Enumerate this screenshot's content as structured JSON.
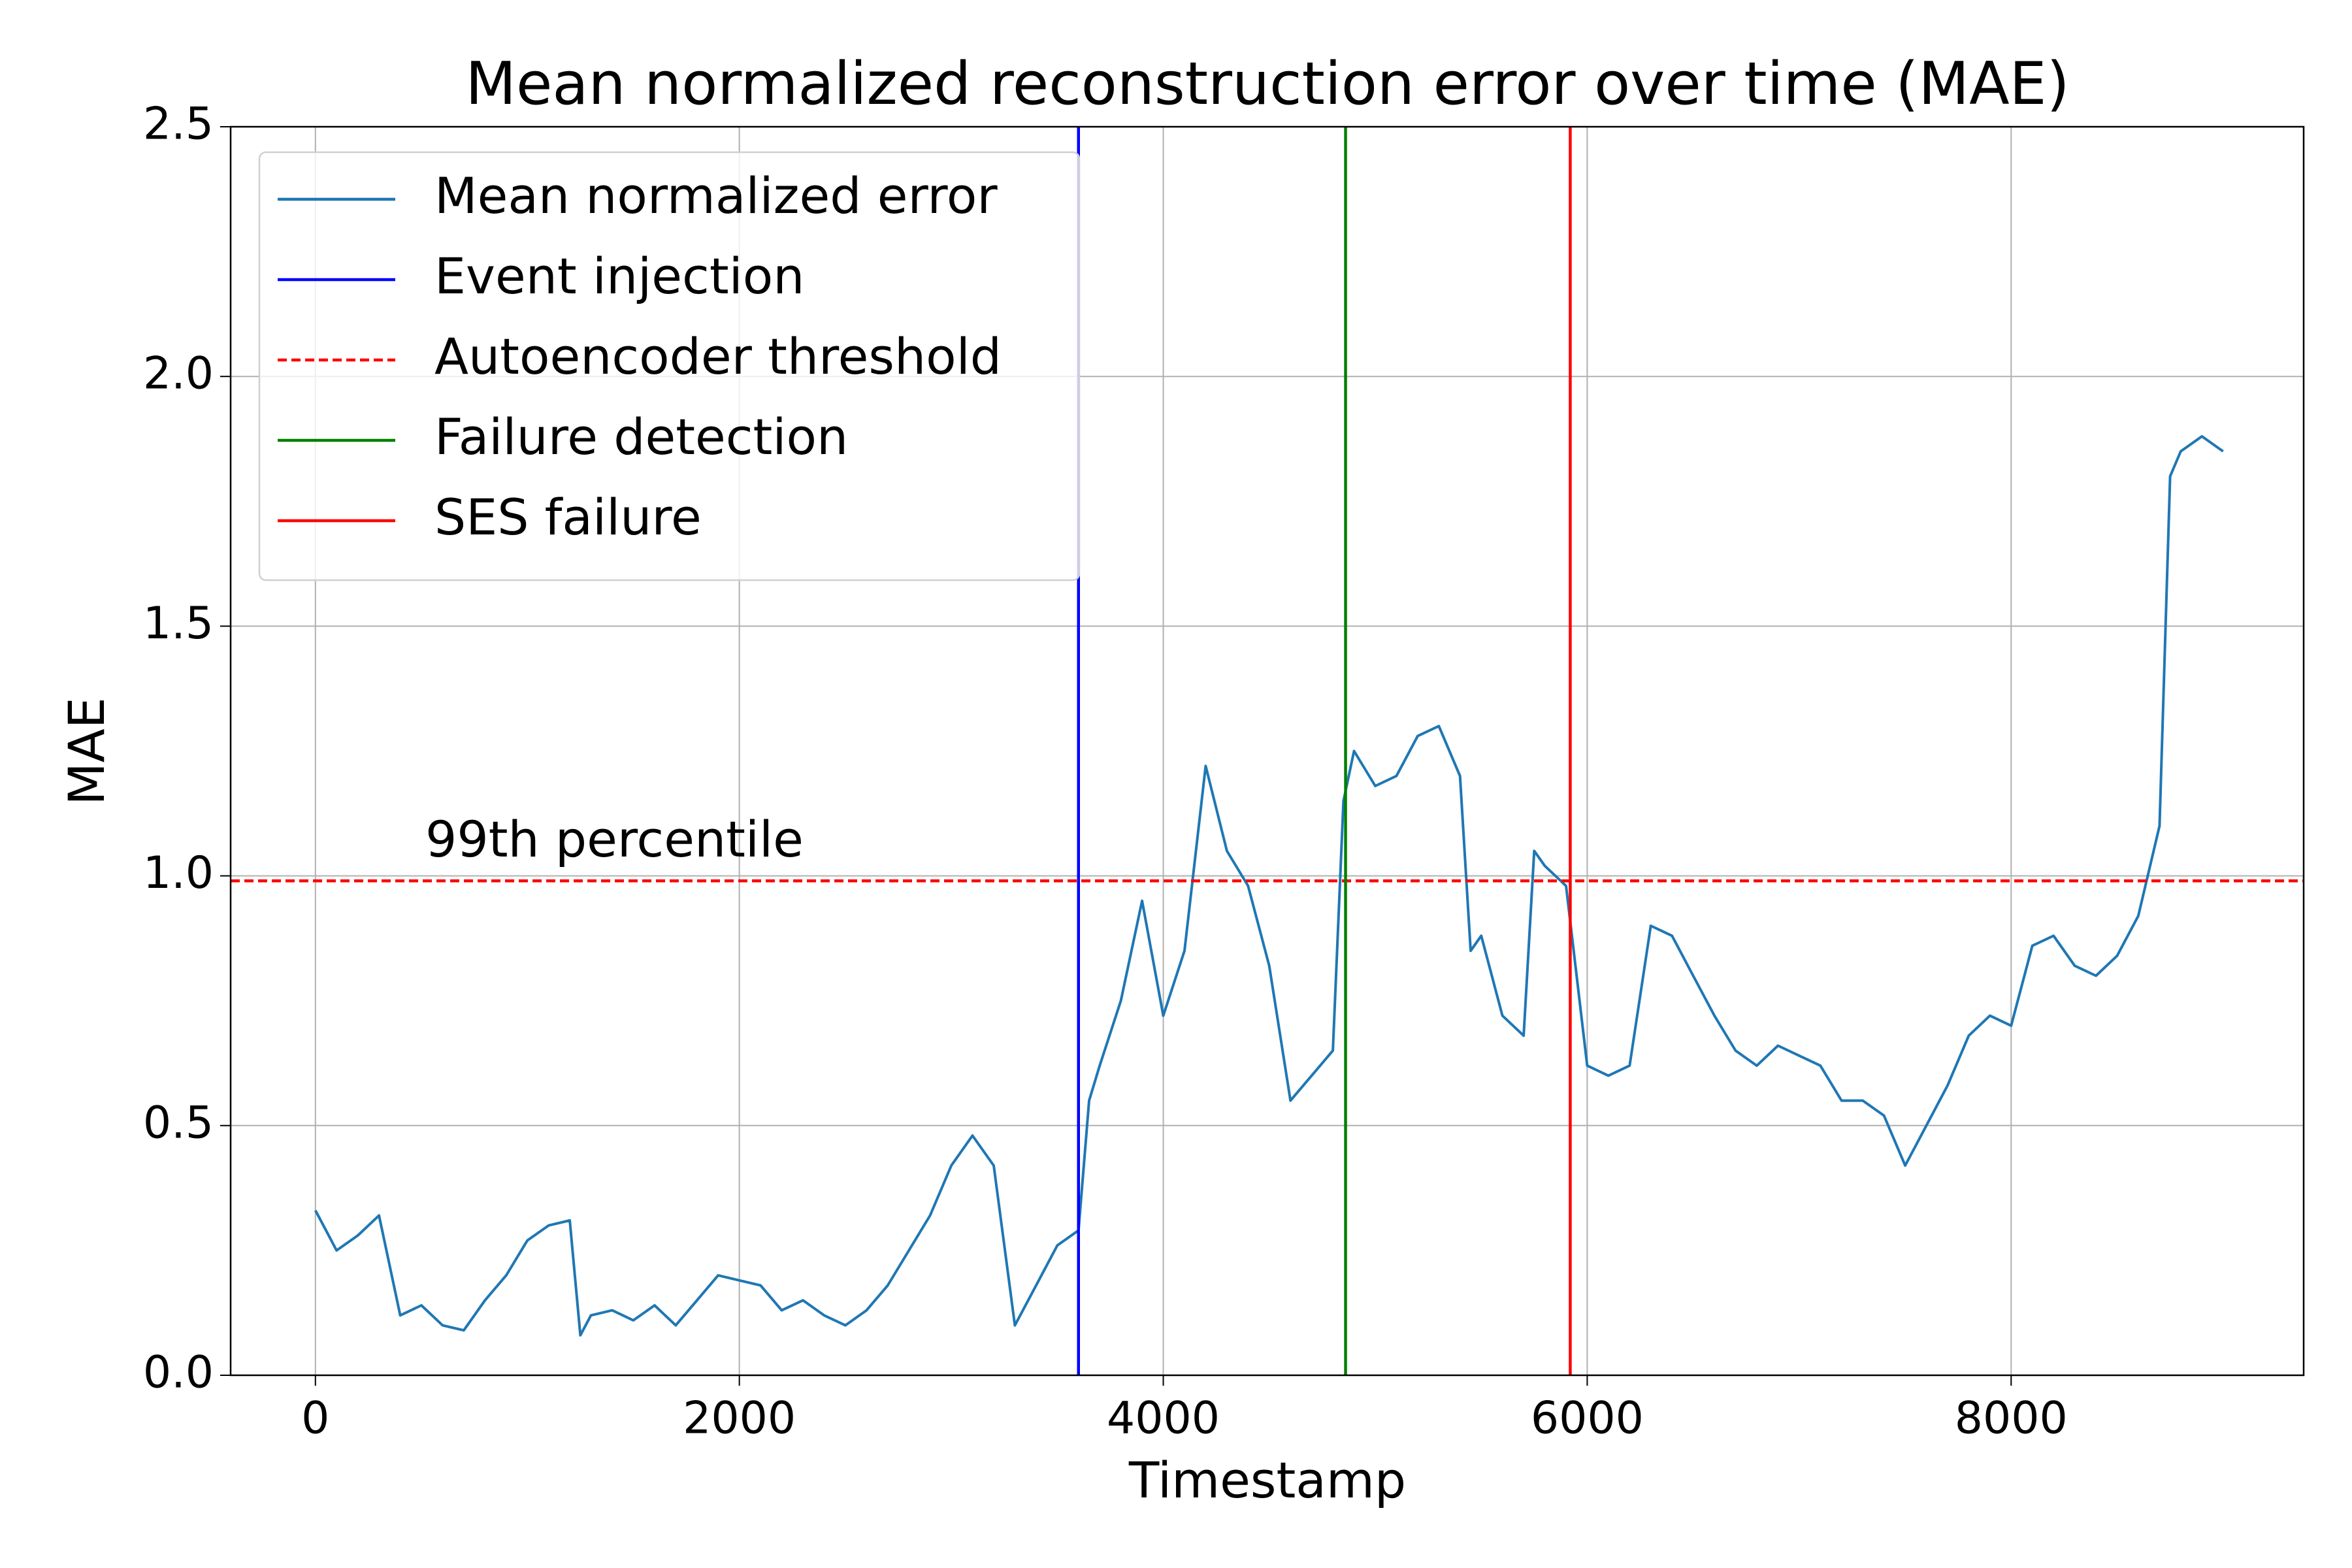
{
  "chart_data": {
    "type": "line",
    "title": "Mean normalized reconstruction error over time (MAE)",
    "x_label": "Timestamp",
    "y_label": "MAE",
    "x": [
      0,
      100,
      200,
      300,
      400,
      500,
      600,
      700,
      800,
      900,
      1000,
      1100,
      1200,
      1250,
      1300,
      1400,
      1500,
      1600,
      1700,
      1800,
      1900,
      2000,
      2100,
      2200,
      2300,
      2400,
      2500,
      2600,
      2700,
      2800,
      2900,
      3000,
      3100,
      3200,
      3300,
      3400,
      3500,
      3600,
      3650,
      3700,
      3800,
      3900,
      4000,
      4100,
      4200,
      4300,
      4400,
      4500,
      4600,
      4700,
      4800,
      4850,
      4900,
      5000,
      5100,
      5200,
      5300,
      5400,
      5450,
      5500,
      5600,
      5700,
      5750,
      5800,
      5900,
      6000,
      6100,
      6200,
      6300,
      6400,
      6500,
      6600,
      6700,
      6800,
      6900,
      7000,
      7100,
      7200,
      7300,
      7400,
      7500,
      7600,
      7700,
      7800,
      7900,
      8000,
      8100,
      8200,
      8300,
      8400,
      8500,
      8600,
      8700,
      8750,
      8800,
      8900,
      9000
    ],
    "series": [
      {
        "name": "Mean normalized error",
        "color": "#1f77b4",
        "values": [
          0.33,
          0.25,
          0.28,
          0.32,
          0.12,
          0.14,
          0.1,
          0.09,
          0.15,
          0.2,
          0.27,
          0.3,
          0.31,
          0.08,
          0.12,
          0.13,
          0.11,
          0.14,
          0.1,
          0.15,
          0.2,
          0.19,
          0.18,
          0.13,
          0.15,
          0.12,
          0.1,
          0.13,
          0.18,
          0.25,
          0.32,
          0.42,
          0.48,
          0.42,
          0.1,
          0.18,
          0.26,
          0.29,
          0.55,
          0.62,
          0.75,
          0.95,
          0.72,
          0.85,
          1.22,
          1.05,
          0.98,
          0.82,
          0.55,
          0.6,
          0.65,
          1.15,
          1.25,
          1.18,
          1.2,
          1.28,
          1.3,
          1.2,
          0.85,
          0.88,
          0.72,
          0.68,
          1.05,
          1.02,
          0.98,
          0.62,
          0.6,
          0.62,
          0.9,
          0.88,
          0.8,
          0.72,
          0.65,
          0.62,
          0.66,
          0.64,
          0.62,
          0.55,
          0.55,
          0.52,
          0.42,
          0.5,
          0.58,
          0.68,
          0.72,
          0.7,
          0.86,
          0.88,
          0.82,
          0.8,
          0.84,
          0.92,
          1.1,
          1.8,
          1.85,
          1.88,
          1.85
        ]
      }
    ],
    "reference_lines": [
      {
        "name": "Event injection",
        "color": "#0000ff",
        "orientation": "vertical",
        "style": "solid",
        "x": 3600
      },
      {
        "name": "Autoencoder threshold",
        "color": "#ff0000",
        "orientation": "horizontal",
        "style": "dashed",
        "y": 0.99
      },
      {
        "name": "Failure detection",
        "color": "#008000",
        "orientation": "vertical",
        "style": "solid",
        "x": 4860
      },
      {
        "name": "SES failure",
        "color": "#ff0000",
        "orientation": "vertical",
        "style": "solid",
        "x": 5920
      }
    ],
    "annotation": {
      "text": "99th percentile",
      "color": "#ff0000"
    },
    "xlim": [
      -400,
      9380
    ],
    "ylim": [
      0,
      2.5
    ],
    "xticks": [
      0,
      2000,
      4000,
      6000,
      8000
    ],
    "yticks": [
      {
        "value": 0,
        "label": "0.0"
      },
      0.5,
      {
        "value": 1,
        "label": "1.0"
      },
      1.5,
      {
        "value": 2,
        "label": "2.0"
      },
      2.5
    ],
    "grid": true,
    "legend": "upper left"
  }
}
